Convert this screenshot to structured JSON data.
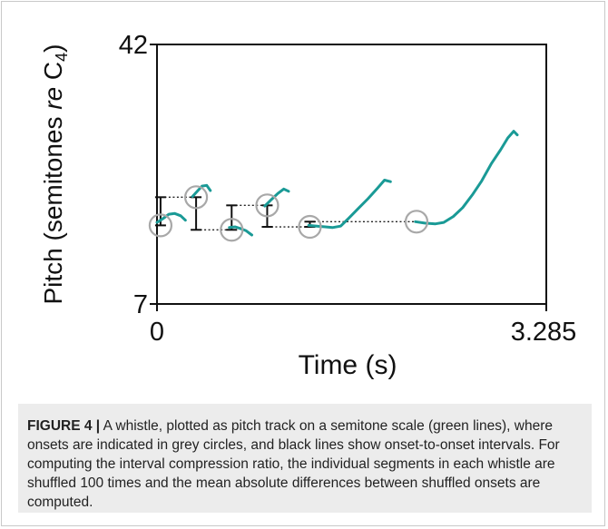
{
  "chart_data": {
    "type": "line",
    "xlabel": "Time (s)",
    "ylabel_main": "Pitch (semitones ",
    "ylabel_italic": "re",
    "ylabel_tail": " C",
    "ylabel_sub": "4",
    "ylabel_close": ")",
    "xlim": [
      0,
      3.285
    ],
    "ylim": [
      7,
      42
    ],
    "x_tick_labels": [
      "0",
      "3.285"
    ],
    "y_tick_labels": [
      "42",
      "7"
    ],
    "x_ticks": [
      0,
      3.285
    ],
    "y_ticks": [
      42,
      7
    ],
    "pitch_color": "#1a9a96",
    "onset_color": "#a8a8a8",
    "interval_color": "#111111",
    "segments": [
      {
        "points": [
          [
            0.0,
            18.0
          ],
          [
            0.05,
            18.5
          ],
          [
            0.1,
            19.1
          ],
          [
            0.15,
            19.2
          ],
          [
            0.2,
            18.9
          ],
          [
            0.24,
            18.3
          ]
        ]
      },
      {
        "points": [
          [
            0.3,
            21.5
          ],
          [
            0.34,
            22.2
          ],
          [
            0.38,
            22.9
          ],
          [
            0.42,
            23.0
          ],
          [
            0.45,
            22.3
          ]
        ]
      },
      {
        "points": [
          [
            0.61,
            17.3
          ],
          [
            0.66,
            17.4
          ],
          [
            0.7,
            17.2
          ],
          [
            0.75,
            16.9
          ],
          [
            0.8,
            16.3
          ]
        ]
      },
      {
        "points": [
          [
            0.91,
            20.2
          ],
          [
            0.96,
            21.0
          ],
          [
            1.02,
            21.9
          ],
          [
            1.07,
            22.5
          ],
          [
            1.11,
            22.2
          ]
        ]
      },
      {
        "points": [
          [
            1.28,
            17.6
          ],
          [
            1.35,
            17.5
          ],
          [
            1.42,
            17.4
          ],
          [
            1.48,
            17.3
          ],
          [
            1.55,
            17.5
          ],
          [
            1.62,
            18.6
          ],
          [
            1.7,
            19.9
          ],
          [
            1.78,
            21.2
          ],
          [
            1.86,
            22.6
          ],
          [
            1.92,
            23.7
          ],
          [
            1.97,
            23.5
          ]
        ]
      },
      {
        "points": [
          [
            2.18,
            18.1
          ],
          [
            2.26,
            17.9
          ],
          [
            2.35,
            17.8
          ],
          [
            2.42,
            18.0
          ],
          [
            2.5,
            18.8
          ],
          [
            2.58,
            20.0
          ],
          [
            2.66,
            21.7
          ],
          [
            2.74,
            23.6
          ],
          [
            2.82,
            25.9
          ],
          [
            2.9,
            27.8
          ],
          [
            2.96,
            29.4
          ],
          [
            3.01,
            30.3
          ],
          [
            3.04,
            29.8
          ]
        ]
      }
    ],
    "onsets": [
      [
        0.03,
        17.6
      ],
      [
        0.33,
        21.4
      ],
      [
        0.63,
        17.0
      ],
      [
        0.93,
        20.3
      ],
      [
        1.29,
        17.4
      ],
      [
        2.19,
        18.1
      ]
    ],
    "intervals": [
      {
        "x": 0.03,
        "y1": 17.6,
        "y2": 21.4
      },
      {
        "x": 0.33,
        "y1": 17.0,
        "y2": 21.4
      },
      {
        "x": 0.63,
        "y1": 17.0,
        "y2": 20.3
      },
      {
        "x": 0.93,
        "y1": 17.4,
        "y2": 20.3
      },
      {
        "x": 1.29,
        "y1": 17.4,
        "y2": 18.1
      }
    ],
    "connectors": [
      {
        "x1": 0.03,
        "x2": 0.33,
        "y": 21.4
      },
      {
        "x1": 0.33,
        "x2": 0.63,
        "y": 17.0
      },
      {
        "x1": 0.63,
        "x2": 0.93,
        "y": 20.3
      },
      {
        "x1": 0.93,
        "x2": 1.29,
        "y": 17.4
      },
      {
        "x1": 1.29,
        "x2": 2.19,
        "y": 18.1
      }
    ]
  },
  "caption": {
    "label": "FIGURE 4 |",
    "text": " A whistle, plotted as pitch track on a semitone scale (green lines), where onsets are indicated in grey circles, and black lines show onset-to-onset intervals. For computing the interval compression ratio, the individual segments in each whistle are shuffled 100 times and the mean absolute differences between shuffled onsets are computed."
  }
}
